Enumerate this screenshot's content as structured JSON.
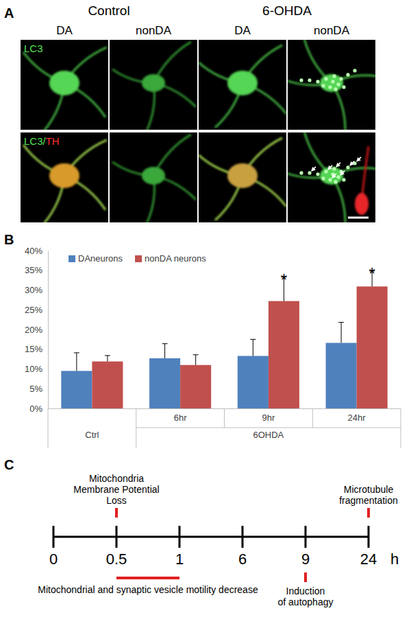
{
  "panel_labels": {
    "a": "A",
    "b": "B",
    "c": "C"
  },
  "micrographs": {
    "conditions": [
      "Control",
      "6-OHDA"
    ],
    "columns": [
      "DA",
      "nonDA",
      "DA",
      "nonDA"
    ],
    "rows": [
      [
        "LC3"
      ],
      [
        "LC3/",
        "TH"
      ]
    ]
  },
  "chart_data": {
    "type": "bar",
    "categories": [
      "Ctrl",
      "6hr",
      "9hr",
      "24hr"
    ],
    "category_groups": [
      {
        "label": "6OHDA",
        "categories": [
          "6hr",
          "9hr",
          "24hr"
        ]
      }
    ],
    "series": [
      {
        "name": "DAneurons",
        "color": "#4f81bd",
        "values": [
          9.5,
          12.7,
          13.3,
          16.6
        ],
        "errors": [
          4.6,
          3.7,
          4.2,
          5.2
        ]
      },
      {
        "name": "nonDA neurons",
        "color": "#c0504d",
        "values": [
          11.9,
          11.0,
          27.2,
          30.9
        ],
        "errors": [
          1.5,
          2.6,
          6.1,
          3.9
        ]
      }
    ],
    "ylim": [
      0,
      40
    ],
    "yticks": [
      {
        "value": 0,
        "label": "0%"
      },
      {
        "value": 5,
        "label": "5%"
      },
      {
        "value": 10,
        "label": "10%"
      },
      {
        "value": 15,
        "label": "15%"
      },
      {
        "value": 20,
        "label": "20%"
      },
      {
        "value": 25,
        "label": "25%"
      },
      {
        "value": 30,
        "label": "30%"
      },
      {
        "value": 35,
        "label": "35%"
      },
      {
        "value": 40,
        "label": "40%"
      }
    ],
    "grid": false,
    "legend": "top-left",
    "annotations": [
      {
        "text": "*",
        "series": "nonDA neurons",
        "category": "9hr"
      },
      {
        "text": "*",
        "series": "nonDA neurons",
        "category": "24hr"
      }
    ]
  },
  "timeline": {
    "ticks": [
      0,
      0.5,
      1,
      6,
      9,
      24
    ],
    "unit": "h",
    "events": [
      {
        "lines": [
          "Mitochondria",
          "Membrane Potential",
          "Loss"
        ],
        "at": 0.5,
        "side": "above"
      },
      {
        "lines": [
          "Mitochondrial and synaptic vesicle motility decrease"
        ],
        "from": 0.5,
        "to": 1,
        "side": "below"
      },
      {
        "lines": [
          "Induction",
          "of autophagy"
        ],
        "at": 9,
        "side": "below"
      },
      {
        "lines": [
          "Microtubule",
          "fragmentation"
        ],
        "at": 24,
        "side": "above"
      }
    ]
  }
}
